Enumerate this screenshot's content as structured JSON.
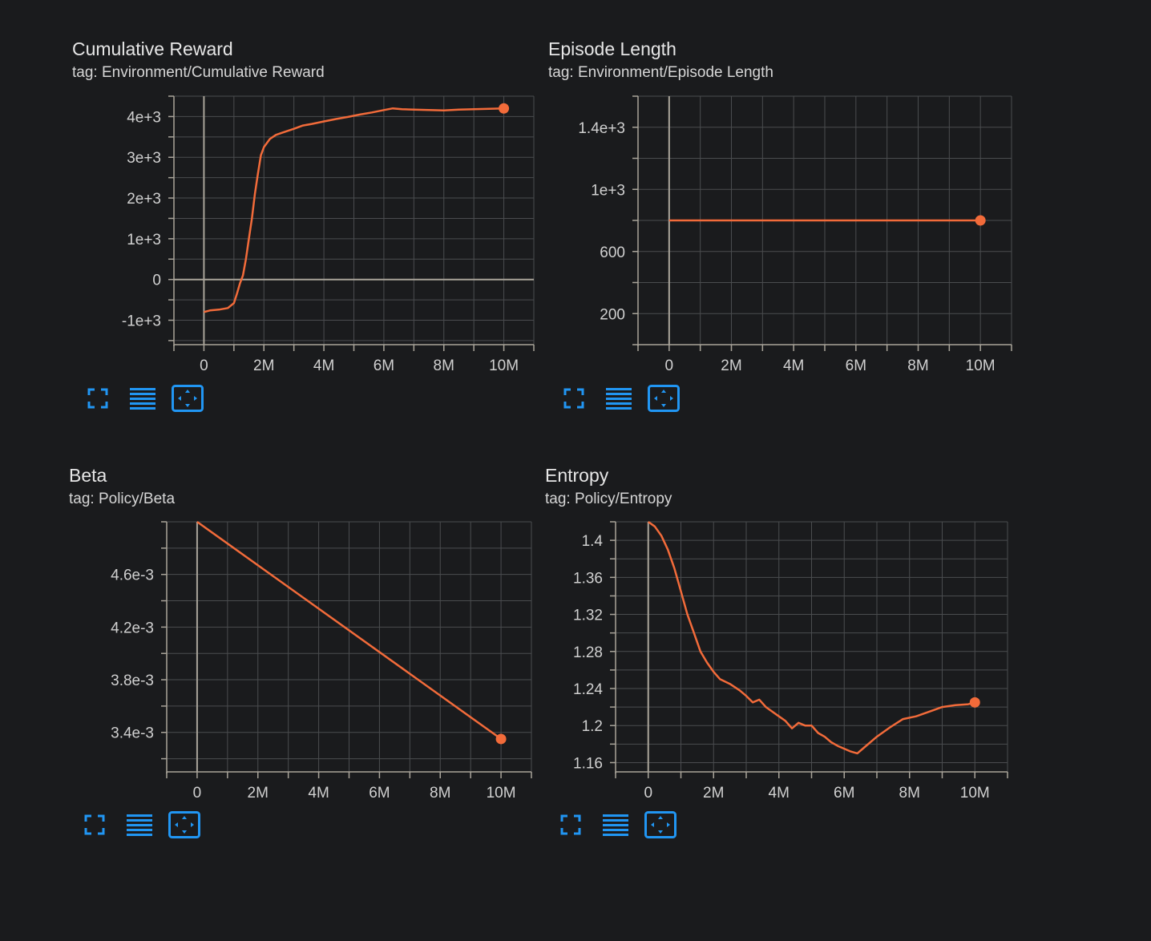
{
  "cards": [
    {
      "title": "Cumulative Reward",
      "tag": "tag: Environment/Cumulative Reward",
      "tools": {
        "fullscreen": "fullscreen-icon",
        "data": "list-icon",
        "fit": "fit-domain-icon"
      }
    },
    {
      "title": "Episode Length",
      "tag": "tag: Environment/Episode Length",
      "tools": {
        "fullscreen": "fullscreen-icon",
        "data": "list-icon",
        "fit": "fit-domain-icon"
      }
    },
    {
      "title": "Beta",
      "tag": "tag: Policy/Beta",
      "tools": {
        "fullscreen": "fullscreen-icon",
        "data": "list-icon",
        "fit": "fit-domain-icon"
      }
    },
    {
      "title": "Entropy",
      "tag": "tag: Policy/Entropy",
      "tools": {
        "fullscreen": "fullscreen-icon",
        "data": "list-icon",
        "fit": "fit-domain-icon"
      }
    }
  ],
  "colors": {
    "line": "#f26b3a",
    "grid": "#4a4c4f",
    "axis": "#a9a49a",
    "tick_text": "#d0d0d0",
    "tool": "#2196f3",
    "background": "#1a1b1d"
  },
  "chart_data": [
    {
      "type": "line",
      "title": "Cumulative Reward",
      "xlabel": "",
      "ylabel": "",
      "xlim": [
        -1000000,
        11000000
      ],
      "ylim": [
        -1600,
        4500
      ],
      "x_ticks": [
        0,
        2000000,
        4000000,
        6000000,
        8000000,
        10000000
      ],
      "x_tick_labels": [
        "0",
        "2M",
        "4M",
        "6M",
        "8M",
        "10M"
      ],
      "y_ticks": [
        -1000,
        0,
        1000,
        2000,
        3000,
        4000
      ],
      "y_tick_labels": [
        "-1e+3",
        "0",
        "1e+3",
        "2e+3",
        "3e+3",
        "4e+3"
      ],
      "grid": true,
      "series": [
        {
          "x": [
            0,
            200000,
            500000,
            800000,
            1000000,
            1100000,
            1200000,
            1300000,
            1400000,
            1500000,
            1600000,
            1700000,
            1800000,
            1900000,
            2000000,
            2200000,
            2400000,
            2600000,
            2800000,
            3000000,
            3300000,
            3600000,
            4000000,
            4400000,
            4800000,
            5200000,
            5600000,
            6000000,
            6300000,
            6600000,
            7000000,
            7500000,
            8000000,
            8500000,
            9000000,
            9500000,
            10000000
          ],
          "y": [
            -800,
            -760,
            -740,
            -700,
            -580,
            -350,
            -100,
            100,
            500,
            1000,
            1500,
            2100,
            2600,
            3050,
            3250,
            3450,
            3550,
            3600,
            3650,
            3700,
            3780,
            3820,
            3880,
            3940,
            3990,
            4050,
            4100,
            4160,
            4200,
            4180,
            4170,
            4160,
            4150,
            4170,
            4180,
            4190,
            4200
          ]
        }
      ],
      "last_point": [
        10000000,
        4200
      ]
    },
    {
      "type": "line",
      "title": "Episode Length",
      "xlabel": "",
      "ylabel": "",
      "xlim": [
        -1000000,
        11000000
      ],
      "ylim": [
        0,
        1600
      ],
      "x_ticks": [
        0,
        2000000,
        4000000,
        6000000,
        8000000,
        10000000
      ],
      "x_tick_labels": [
        "0",
        "2M",
        "4M",
        "6M",
        "8M",
        "10M"
      ],
      "y_ticks": [
        200,
        600,
        1000,
        1400
      ],
      "y_tick_labels": [
        "200",
        "600",
        "1e+3",
        "1.4e+3"
      ],
      "grid": true,
      "series": [
        {
          "x": [
            0,
            10000000
          ],
          "y": [
            800,
            800
          ]
        }
      ],
      "last_point": [
        10000000,
        800
      ]
    },
    {
      "type": "line",
      "title": "Beta",
      "xlabel": "",
      "ylabel": "",
      "xlim": [
        -1000000,
        11000000
      ],
      "ylim": [
        0.0031,
        0.005
      ],
      "x_ticks": [
        0,
        2000000,
        4000000,
        6000000,
        8000000,
        10000000
      ],
      "x_tick_labels": [
        "0",
        "2M",
        "4M",
        "6M",
        "8M",
        "10M"
      ],
      "y_ticks": [
        0.0034,
        0.0038,
        0.0042,
        0.0046
      ],
      "y_tick_labels": [
        "3.4e-3",
        "3.8e-3",
        "4.2e-3",
        "4.6e-3"
      ],
      "grid": true,
      "series": [
        {
          "x": [
            0,
            10000000
          ],
          "y": [
            0.005,
            0.00335
          ]
        }
      ],
      "last_point": [
        10000000,
        0.00335
      ]
    },
    {
      "type": "line",
      "title": "Entropy",
      "xlabel": "",
      "ylabel": "",
      "xlim": [
        -1000000,
        11000000
      ],
      "ylim": [
        1.15,
        1.42
      ],
      "x_ticks": [
        0,
        2000000,
        4000000,
        6000000,
        8000000,
        10000000
      ],
      "x_tick_labels": [
        "0",
        "2M",
        "4M",
        "6M",
        "8M",
        "10M"
      ],
      "y_ticks": [
        1.16,
        1.2,
        1.24,
        1.28,
        1.32,
        1.36,
        1.4
      ],
      "y_tick_labels": [
        "1.16",
        "1.2",
        "1.24",
        "1.28",
        "1.32",
        "1.36",
        "1.4"
      ],
      "grid": true,
      "series": [
        {
          "x": [
            0,
            200000,
            400000,
            600000,
            800000,
            1000000,
            1200000,
            1400000,
            1600000,
            1800000,
            2000000,
            2200000,
            2500000,
            2800000,
            3000000,
            3200000,
            3400000,
            3600000,
            3800000,
            4000000,
            4200000,
            4400000,
            4600000,
            4800000,
            5000000,
            5200000,
            5400000,
            5600000,
            5800000,
            6000000,
            6200000,
            6400000,
            6600000,
            7000000,
            7400000,
            7800000,
            8200000,
            8600000,
            9000000,
            9400000,
            9800000,
            10000000
          ],
          "y": [
            1.42,
            1.415,
            1.405,
            1.39,
            1.37,
            1.345,
            1.32,
            1.3,
            1.28,
            1.268,
            1.258,
            1.25,
            1.245,
            1.238,
            1.232,
            1.225,
            1.228,
            1.22,
            1.215,
            1.21,
            1.205,
            1.197,
            1.203,
            1.2,
            1.2,
            1.192,
            1.188,
            1.182,
            1.178,
            1.175,
            1.172,
            1.17,
            1.176,
            1.188,
            1.198,
            1.207,
            1.21,
            1.215,
            1.22,
            1.222,
            1.223,
            1.225
          ]
        }
      ],
      "last_point": [
        10000000,
        1.225
      ]
    }
  ]
}
